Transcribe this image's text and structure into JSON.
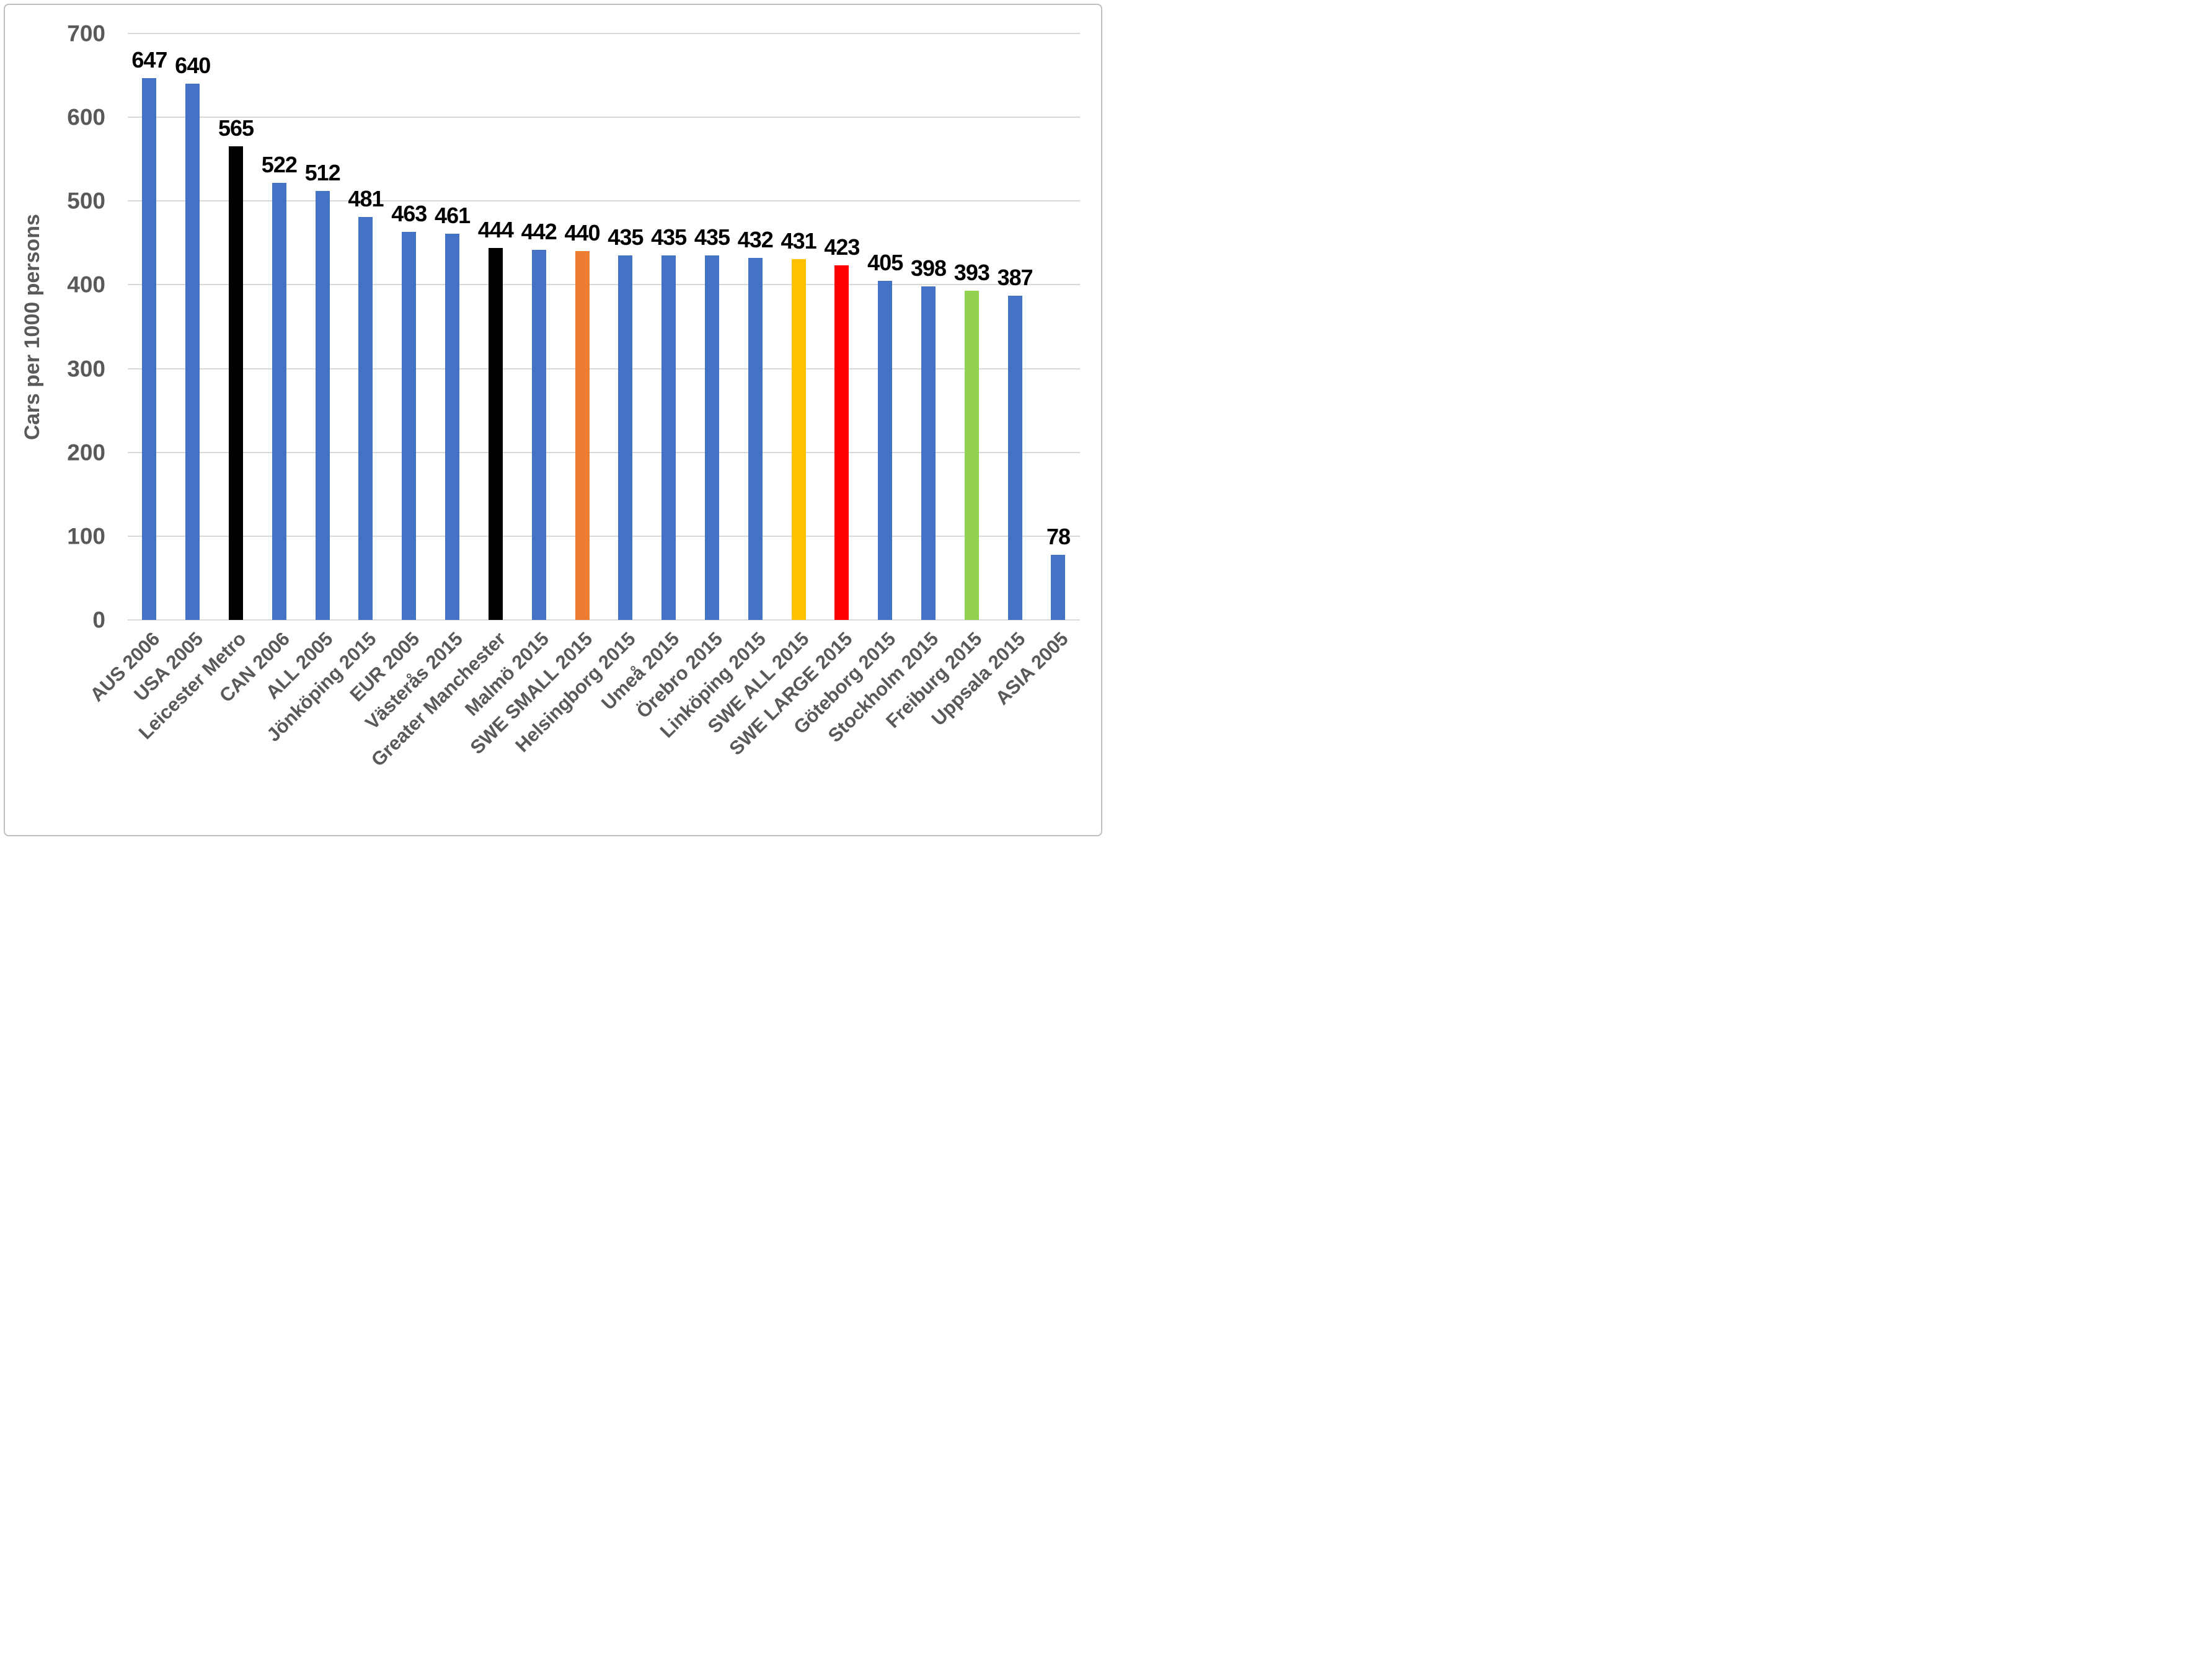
{
  "chart_data": {
    "type": "bar",
    "title": "",
    "ylabel": "Cars per 1000 persons",
    "xlabel": "",
    "ylim": [
      0,
      700
    ],
    "yticks": [
      0,
      100,
      200,
      300,
      400,
      500,
      600,
      700
    ],
    "grid": "horizontal-only",
    "legend_position": "none",
    "categories": [
      "AUS 2006",
      "USA 2005",
      "Leicester Metro",
      "CAN 2006",
      "ALL 2005",
      "Jönköping 2015",
      "EUR 2005",
      "Västerås 2015",
      "Greater Manchester",
      "Malmö 2015",
      "SWE SMALL 2015",
      "Helsingborg 2015",
      "Umeå 2015",
      "Örebro 2015",
      "Linköping 2015",
      "SWE ALL 2015",
      "SWE LARGE 2015",
      "Göteborg 2015",
      "Stockholm 2015",
      "Freiburg 2015",
      "Uppsala 2015",
      "ASIA 2005"
    ],
    "values": [
      647,
      640,
      565,
      522,
      512,
      481,
      463,
      461,
      444,
      442,
      440,
      435,
      435,
      435,
      432,
      431,
      423,
      405,
      398,
      393,
      387,
      78
    ],
    "bar_colors": [
      "blue",
      "blue",
      "black",
      "blue",
      "blue",
      "blue",
      "blue",
      "blue",
      "black",
      "blue",
      "orange",
      "blue",
      "blue",
      "blue",
      "blue",
      "yellow",
      "red",
      "blue",
      "blue",
      "green",
      "blue",
      "blue"
    ],
    "palette": {
      "blue": "#4472C4",
      "black": "#000000",
      "orange": "#ED7D31",
      "yellow": "#FFC000",
      "red": "#FF0000",
      "green": "#92D050"
    },
    "colors": {
      "axis_text": "#595959",
      "data_label": "#000000",
      "gridline": "#D9D9D9",
      "frame_border": "#BFBFBF",
      "background": "#FFFFFF"
    }
  }
}
